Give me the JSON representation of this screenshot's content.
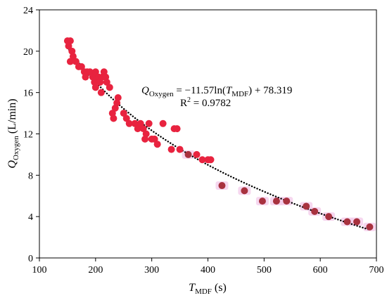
{
  "chart_data": {
    "type": "scatter",
    "x_axis": {
      "label_main": "T",
      "label_sub": "MDF",
      "label_unit": "(s)",
      "range": [
        100,
        700
      ],
      "ticks": [
        100,
        200,
        300,
        400,
        500,
        600,
        700
      ],
      "tick_labels": [
        "100",
        "200",
        "300",
        "400",
        "500",
        "600",
        "700"
      ]
    },
    "y_axis": {
      "label_main": "Q",
      "label_sub": "Oxygen",
      "label_unit": "(L/min)",
      "range": [
        0,
        24
      ],
      "ticks": [
        0,
        4,
        8,
        12,
        16,
        20,
        24
      ],
      "tick_labels": [
        "0",
        "4",
        "8",
        "12",
        "16",
        "20",
        "24"
      ]
    },
    "grid": false,
    "annotation": {
      "eq_q": "Q",
      "eq_q_sub": "Oxygen",
      "eq_mid": " = −11.57ln(",
      "eq_t": "T",
      "eq_t_sub": "MDF",
      "eq_end": ") + 78.319",
      "r2_prefix": "R",
      "r2_sup": "2",
      "r2_suffix": " = 0.9782"
    },
    "trendline": {
      "model": "log",
      "a": -11.57,
      "b": 78.319,
      "x_range": [
        150,
        690
      ],
      "color": "#000000",
      "style": "dotted"
    },
    "series": [
      {
        "color": "#e8233f",
        "points": [
          [
            150,
            21
          ],
          [
            155,
            21
          ],
          [
            152,
            20.5
          ],
          [
            158,
            20
          ],
          [
            160,
            19.5
          ],
          [
            155,
            19
          ],
          [
            165,
            19
          ],
          [
            170,
            18.5
          ],
          [
            175,
            18.5
          ],
          [
            180,
            18
          ],
          [
            185,
            18
          ],
          [
            182,
            17.5
          ],
          [
            190,
            18
          ],
          [
            195,
            17.5
          ],
          [
            200,
            18
          ],
          [
            205,
            17.5
          ],
          [
            198,
            17
          ],
          [
            200,
            16.5
          ],
          [
            208,
            17
          ],
          [
            210,
            16
          ],
          [
            212,
            17.5
          ],
          [
            215,
            18
          ],
          [
            218,
            17.5
          ],
          [
            220,
            17
          ],
          [
            225,
            16.5
          ],
          [
            230,
            14
          ],
          [
            232,
            13.5
          ],
          [
            235,
            14.5
          ],
          [
            238,
            15
          ],
          [
            240,
            15.5
          ],
          [
            250,
            14
          ],
          [
            255,
            13.5
          ],
          [
            260,
            13
          ],
          [
            270,
            13
          ],
          [
            275,
            12.5
          ],
          [
            280,
            13
          ],
          [
            285,
            12.5
          ],
          [
            288,
            11.5
          ],
          [
            290,
            12
          ],
          [
            295,
            13
          ],
          [
            300,
            11.5
          ],
          [
            305,
            11.5
          ],
          [
            310,
            11
          ],
          [
            320,
            13
          ],
          [
            335,
            10.5
          ],
          [
            340,
            12.5
          ],
          [
            345,
            12.5
          ],
          [
            350,
            10.5
          ],
          [
            380,
            10
          ],
          [
            390,
            9.5
          ],
          [
            400,
            9.5
          ],
          [
            405,
            9.5
          ]
        ]
      },
      {
        "color": "#a8323f",
        "points": [
          [
            365,
            10
          ],
          [
            425,
            7
          ],
          [
            465,
            6.5
          ],
          [
            497,
            5.5
          ],
          [
            522,
            5.5
          ],
          [
            540,
            5.5
          ],
          [
            575,
            5
          ],
          [
            590,
            4.5
          ],
          [
            615,
            4
          ],
          [
            648,
            3.5
          ],
          [
            665,
            3.5
          ],
          [
            688,
            3
          ]
        ]
      }
    ]
  }
}
